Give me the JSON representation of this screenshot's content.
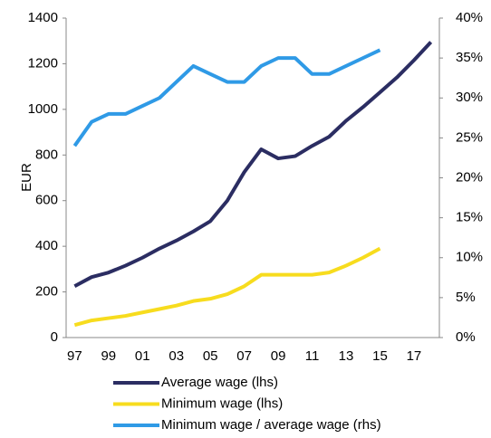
{
  "chart_data": {
    "type": "line",
    "categories": [
      "97",
      null,
      "99",
      null,
      "01",
      null,
      "03",
      null,
      "05",
      null,
      "07",
      null,
      "09",
      null,
      "11",
      null,
      "13",
      null,
      "15",
      null,
      "17",
      null
    ],
    "ylabel": "EUR",
    "ylim": [
      0,
      1400
    ],
    "yticks": [
      0,
      200,
      400,
      600,
      800,
      1000,
      1200,
      1400
    ],
    "y2lim": [
      0,
      40
    ],
    "y2ticks": [
      {
        "value": 0,
        "label": "0%"
      },
      {
        "value": 5,
        "label": "5%"
      },
      {
        "value": 10,
        "label": "10%"
      },
      {
        "value": 15,
        "label": "15%"
      },
      {
        "value": 20,
        "label": "20%"
      },
      {
        "value": 25,
        "label": "25%"
      },
      {
        "value": 30,
        "label": "30%"
      },
      {
        "value": 35,
        "label": "35%"
      },
      {
        "value": 40,
        "label": "40%"
      }
    ],
    "series": [
      {
        "name": "Average wage (lhs)",
        "color": "#2b2d62",
        "values": [
          225,
          265,
          285,
          315,
          350,
          390,
          425,
          465,
          510,
          600,
          725,
          825,
          785,
          795,
          840,
          880,
          950,
          1010,
          1075,
          1140,
          1215,
          1295
        ]
      },
      {
        "name": "Minimum wage (lhs)",
        "color": "#f7dc1e",
        "values": [
          55,
          75,
          85,
          95,
          110,
          125,
          140,
          160,
          170,
          190,
          225,
          275,
          275,
          275,
          275,
          285,
          315,
          350,
          390,
          null,
          null,
          null
        ]
      },
      {
        "name": "Minimum wage / average wage (rhs)",
        "color": "#2f9ae6",
        "axis": "y2",
        "values": [
          24,
          27,
          28,
          28,
          29,
          30,
          32,
          34,
          33,
          32,
          32,
          34,
          35,
          35,
          33,
          33,
          34,
          35,
          36,
          null,
          null,
          null
        ]
      }
    ]
  }
}
